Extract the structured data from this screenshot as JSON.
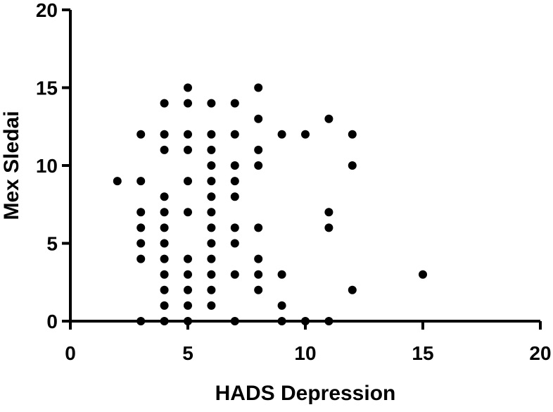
{
  "chart_data": {
    "type": "scatter",
    "x_label": "HADS Depression",
    "y_label": "Mex Sledai",
    "color": "#000000",
    "x": [
      2,
      3,
      3,
      3,
      3,
      3,
      3,
      3,
      4,
      4,
      4,
      4,
      4,
      4,
      4,
      4,
      4,
      4,
      4,
      4,
      5,
      5,
      5,
      5,
      5,
      5,
      5,
      5,
      5,
      5,
      5,
      6,
      6,
      6,
      6,
      6,
      6,
      6,
      6,
      6,
      6,
      6,
      6,
      6,
      7,
      7,
      7,
      7,
      7,
      7,
      7,
      7,
      7,
      8,
      8,
      8,
      8,
      8,
      8,
      8,
      8,
      9,
      9,
      9,
      9,
      10,
      10,
      11,
      11,
      11,
      11,
      12,
      12,
      12,
      15
    ],
    "y": [
      9,
      12,
      9,
      7,
      6,
      5,
      4,
      0,
      14,
      12,
      11,
      8,
      7,
      6,
      5,
      4,
      3,
      2,
      1,
      0,
      15,
      14,
      12,
      11,
      9,
      7,
      4,
      3,
      2,
      1,
      0,
      14,
      12,
      11,
      10,
      9,
      8,
      7,
      6,
      5,
      4,
      3,
      2,
      1,
      14,
      12,
      10,
      9,
      8,
      6,
      5,
      3,
      0,
      15,
      13,
      11,
      10,
      6,
      4,
      3,
      2,
      12,
      3,
      1,
      0,
      12,
      0,
      13,
      7,
      6,
      0,
      12,
      10,
      2,
      3
    ],
    "xlim": [
      0,
      20
    ],
    "ylim": [
      0,
      20
    ],
    "xticks": [
      0,
      5,
      10,
      15,
      20
    ],
    "yticks": [
      0,
      5,
      10,
      15,
      20
    ]
  }
}
